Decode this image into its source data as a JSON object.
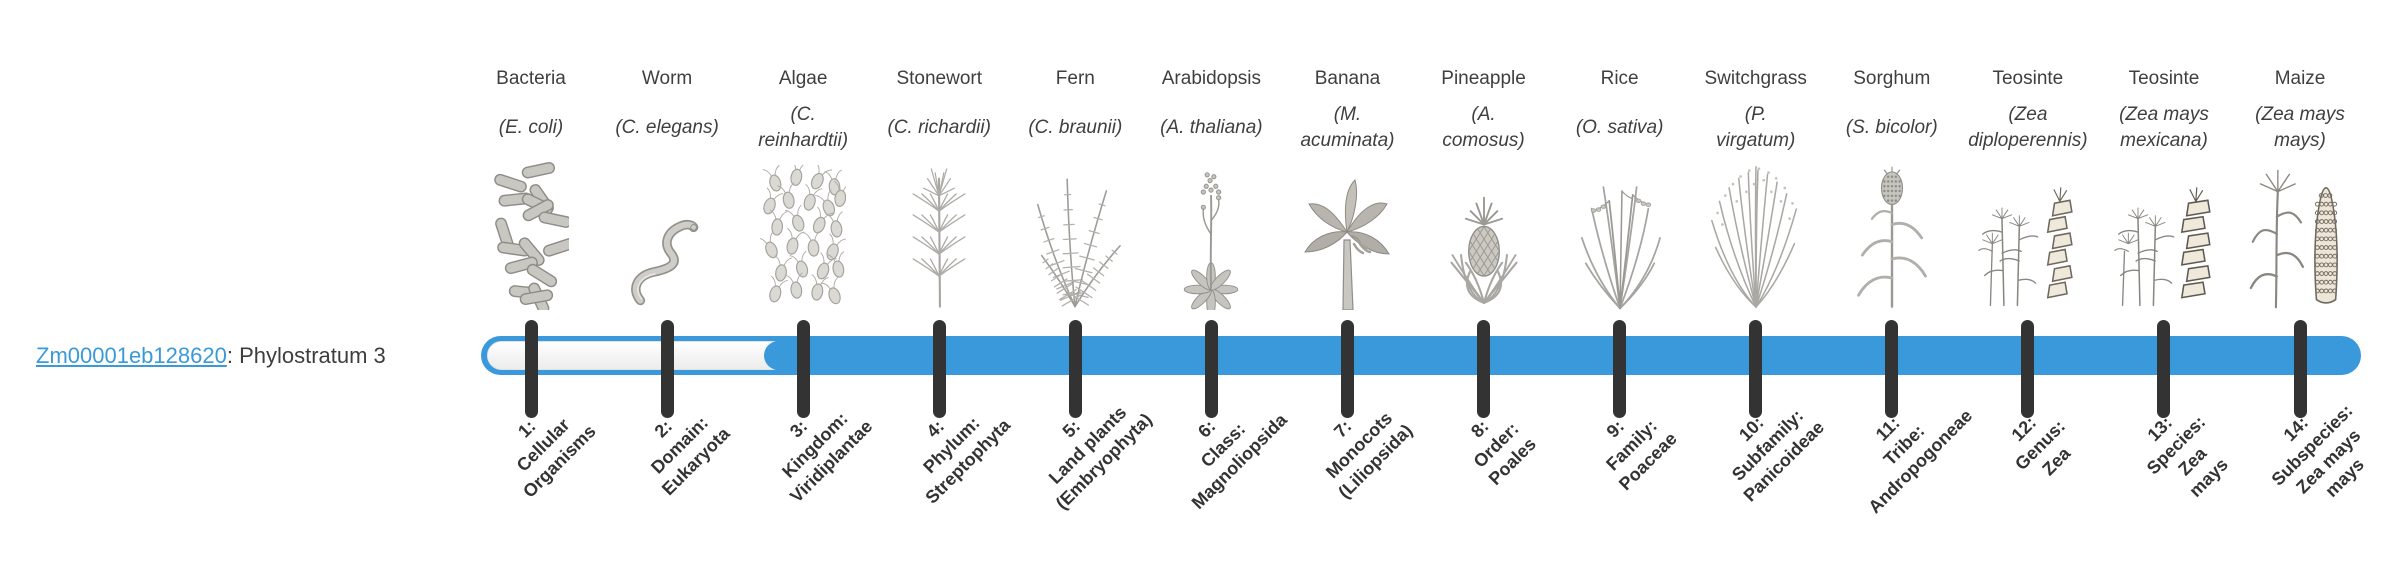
{
  "gene": {
    "id": "Zm00001eb128620",
    "separator": ": ",
    "description": "Phylostratum 3"
  },
  "timeline": {
    "bar_color": "#3999db",
    "track_color": "#ffffff",
    "tick_color": "#333333",
    "link_color": "#3a9ad9",
    "strata_count": 14,
    "fill_start_stratum": 3
  },
  "organisms": [
    {
      "name": "Bacteria",
      "sci_lines": [
        "(E. coli)"
      ],
      "icon": "bacteria-icon",
      "stage_lines": [
        "1:",
        "Cellular",
        "Organisms"
      ]
    },
    {
      "name": "Worm",
      "sci_lines": [
        "(C. elegans)"
      ],
      "icon": "worm-icon",
      "stage_lines": [
        "2:",
        "Domain:",
        "Eukaryota"
      ]
    },
    {
      "name": "Algae",
      "sci_lines": [
        "(C.",
        "reinhardtii)"
      ],
      "icon": "algae-icon",
      "stage_lines": [
        "3:",
        "Kingdom:",
        "Viridiplantae"
      ]
    },
    {
      "name": "Stonewort",
      "sci_lines": [
        "(C. richardii)"
      ],
      "icon": "stonewort-icon",
      "stage_lines": [
        "4:",
        "Phylum:",
        "Streptophyta"
      ]
    },
    {
      "name": "Fern",
      "sci_lines": [
        "(C. braunii)"
      ],
      "icon": "fern-icon",
      "stage_lines": [
        "5:",
        "Land plants",
        "(Embryophyta)"
      ]
    },
    {
      "name": "Arabidopsis",
      "sci_lines": [
        "(A. thaliana)"
      ],
      "icon": "arabidopsis-icon",
      "stage_lines": [
        "6:",
        "Class:",
        "Magnoliopsida"
      ]
    },
    {
      "name": "Banana",
      "sci_lines": [
        "(M.",
        "acuminata)"
      ],
      "icon": "banana-icon",
      "stage_lines": [
        "7:",
        "Monocots",
        "(Liliopsida)"
      ]
    },
    {
      "name": "Pineapple",
      "sci_lines": [
        "(A.",
        "comosus)"
      ],
      "icon": "pineapple-icon",
      "stage_lines": [
        "8:",
        "Order:",
        "Poales"
      ]
    },
    {
      "name": "Rice",
      "sci_lines": [
        "(O. sativa)"
      ],
      "icon": "rice-icon",
      "stage_lines": [
        "9:",
        "Family:",
        "Poaceae"
      ]
    },
    {
      "name": "Switchgrass",
      "sci_lines": [
        "(P.",
        "virgatum)"
      ],
      "icon": "switchgrass-icon",
      "stage_lines": [
        "10:",
        "Subfamily:",
        "Panicoideae"
      ]
    },
    {
      "name": "Sorghum",
      "sci_lines": [
        "(S. bicolor)"
      ],
      "icon": "sorghum-icon",
      "stage_lines": [
        "11:",
        "Tribe:",
        "Andropogoneae"
      ]
    },
    {
      "name": "Teosinte",
      "sci_lines": [
        "(Zea",
        "diploperennis)"
      ],
      "icon": "teosinte-diplo-icon",
      "stage_lines": [
        "12:",
        "Genus:",
        "Zea"
      ]
    },
    {
      "name": "Teosinte",
      "sci_lines": [
        "(Zea mays",
        "mexicana)"
      ],
      "icon": "teosinte-mex-icon",
      "stage_lines": [
        "13:",
        "Species:",
        "Zea",
        "mays"
      ]
    },
    {
      "name": "Maize",
      "sci_lines": [
        "(Zea mays",
        "mays)"
      ],
      "icon": "maize-icon",
      "stage_lines": [
        "14:",
        "Subspecies:",
        "Zea mays",
        "mays"
      ]
    }
  ]
}
